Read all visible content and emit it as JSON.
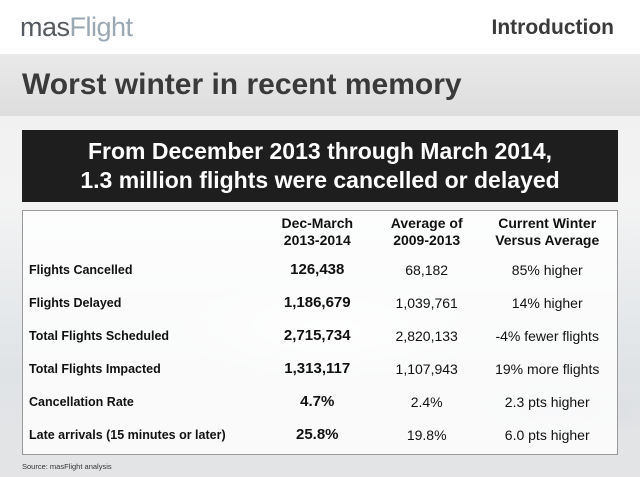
{
  "header": {
    "logo_prefix": "mas",
    "logo_suffix": "Flight",
    "section": "Introduction"
  },
  "title": "Worst winter in recent memory",
  "banner": {
    "line1": "From December 2013 through March 2014,",
    "line2": "1.3 million flights were cancelled or delayed"
  },
  "table": {
    "headers": [
      "",
      [
        "Dec-March",
        "2013-2014"
      ],
      [
        "Average of",
        "2009-2013"
      ],
      [
        "Current Winter",
        "Versus Average"
      ]
    ],
    "rows": [
      {
        "metric": "Flights Cancelled",
        "current": "126,438",
        "average": "68,182",
        "comparison": "85% higher"
      },
      {
        "metric": "Flights Delayed",
        "current": "1,186,679",
        "average": "1,039,761",
        "comparison": "14% higher"
      },
      {
        "metric": "Total Flights Scheduled",
        "current": "2,715,734",
        "average": "2,820,133",
        "comparison": "-4% fewer flights"
      },
      {
        "metric": "Total Flights Impacted",
        "current": "1,313,117",
        "average": "1,107,943",
        "comparison": "19% more flights"
      },
      {
        "metric": "Cancellation Rate",
        "current": "4.7%",
        "average": "2.4%",
        "comparison": "2.3 pts higher"
      },
      {
        "metric": "Late arrivals (15 minutes or later)",
        "current": "25.8%",
        "average": "19.8%",
        "comparison": "6.0 pts higher"
      }
    ]
  },
  "source": "Source: masFlight analysis",
  "colors": {
    "banner_bg": "#1e1e1e",
    "logo_dark": "#555a60",
    "logo_light": "#9aa8b4",
    "title_text": "#3a3a3a"
  }
}
